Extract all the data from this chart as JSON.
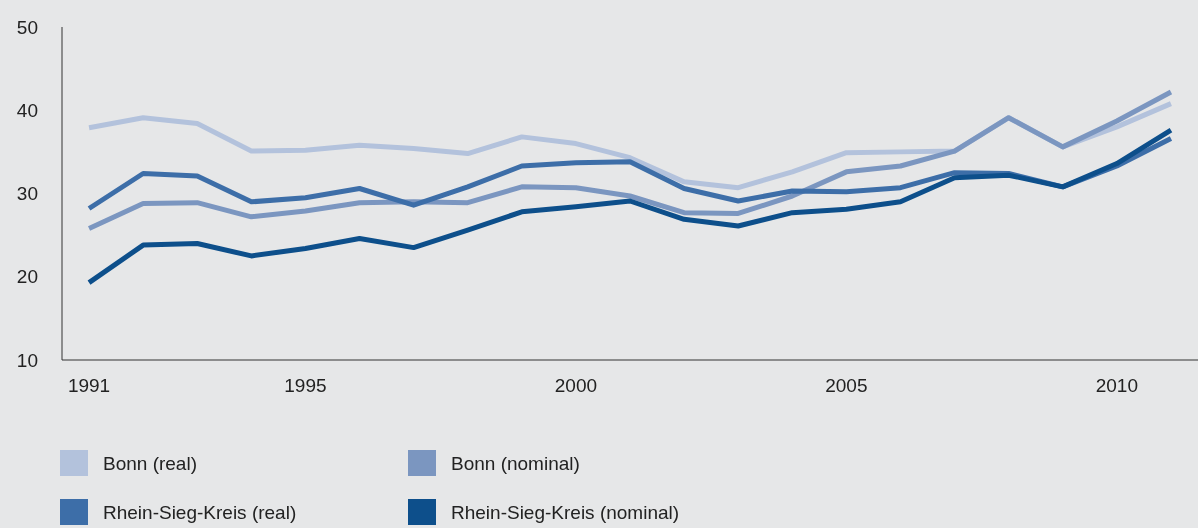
{
  "chart_data": {
    "type": "line",
    "x": [
      1991,
      1992,
      1993,
      1994,
      1995,
      1996,
      1997,
      1998,
      1999,
      2000,
      2001,
      2002,
      2003,
      2004,
      2005,
      2006,
      2007,
      2008,
      2009,
      2010,
      2011
    ],
    "xlim": [
      1990.5,
      2011.5
    ],
    "xticks": [
      1991,
      1995,
      2000,
      2005,
      2010
    ],
    "ylim": [
      10,
      50
    ],
    "yticks": [
      10,
      20,
      30,
      40,
      50
    ],
    "grid": false,
    "legend": "bottom",
    "marker": "none",
    "line_style": "solid",
    "series": [
      {
        "name": "Bonn (real)",
        "color": "#b3c2dc",
        "values": [
          37.9,
          39.1,
          38.4,
          35.1,
          35.2,
          35.8,
          35.4,
          34.8,
          36.8,
          36.0,
          34.3,
          31.4,
          30.7,
          32.6,
          34.9,
          35.0,
          35.1,
          39.1,
          35.6,
          38.0,
          40.8
        ]
      },
      {
        "name": "Bonn (nominal)",
        "color": "#7b96c0",
        "values": [
          25.8,
          28.8,
          28.9,
          27.2,
          27.9,
          28.9,
          29.0,
          28.9,
          30.8,
          30.7,
          29.7,
          27.7,
          27.6,
          29.7,
          32.6,
          33.3,
          35.1,
          39.1,
          35.6,
          38.7,
          42.2
        ]
      },
      {
        "name": "Rhein-Sieg-Kreis (real)",
        "color": "#3d6ea8",
        "values": [
          28.2,
          32.4,
          32.1,
          29.0,
          29.5,
          30.6,
          28.6,
          30.8,
          33.3,
          33.7,
          33.8,
          30.6,
          29.1,
          30.3,
          30.2,
          30.7,
          32.5,
          32.4,
          30.8,
          33.3,
          36.6
        ]
      },
      {
        "name": "Rhein-Sieg-Kreis (nominal)",
        "color": "#0d4f8b",
        "values": [
          19.3,
          23.8,
          24.0,
          22.5,
          23.4,
          24.6,
          23.5,
          25.6,
          27.8,
          28.4,
          29.1,
          26.9,
          26.1,
          27.7,
          28.1,
          29.0,
          31.9,
          32.2,
          30.8,
          33.6,
          37.6
        ]
      }
    ]
  }
}
